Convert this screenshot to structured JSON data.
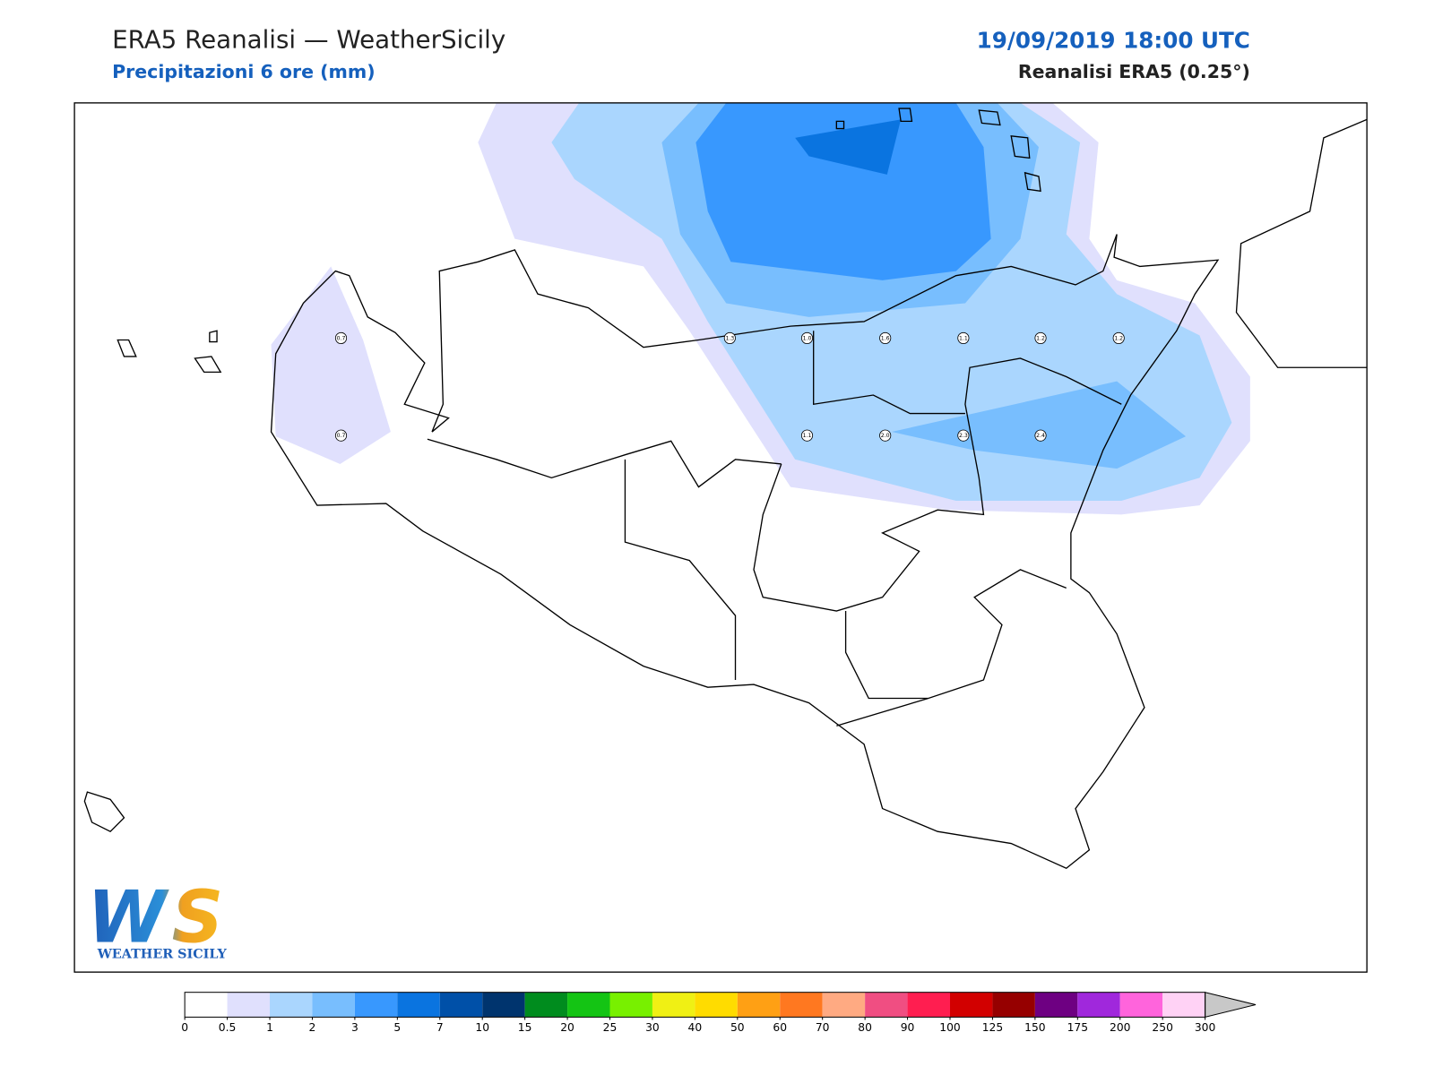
{
  "header": {
    "title": "ERA5 Reanalisi — WeatherSicily",
    "subtitle": "Precipitazioni 6 ore (mm)",
    "datetime": "19/09/2019 18:00 UTC",
    "source": "Reanalisi ERA5 (0.25°)"
  },
  "map": {
    "points": [
      0.7,
      1.3,
      {
        "value": 1,
        "label": "1.0"
      },
      1.6,
      1.1,
      1.2,
      1.2,
      0.7,
      1.1,
      {
        "value": 2,
        "label": "2.0"
      },
      2.3,
      2.4
    ]
  },
  "colorbar": {
    "levels": [
      0,
      0.5,
      1,
      2,
      3,
      5,
      7,
      10,
      15,
      20,
      25,
      30,
      40,
      50,
      60,
      70,
      80,
      90,
      100,
      125,
      150,
      175,
      200,
      250,
      300
    ],
    "colors": [
      "#ffffff",
      "#e0e0fd",
      "#aad6fe",
      "#78befe",
      "#3898fe",
      "#0a74e0",
      "#0050a8",
      "#00346e",
      "#008c1e",
      "#14c414",
      "#78f000",
      "#f0f014",
      "#ffdc00",
      "#ffa014",
      "#ff7820",
      "#ffaa82",
      "#f04e82",
      "#ff1e50",
      "#d20000",
      "#960000",
      "#6e0082",
      "#a028dc",
      "#ff64dc",
      "#ffd2f5"
    ],
    "extend_color": "#c8c8c8"
  },
  "logo": {
    "mark": "WS",
    "text": "WEATHER SICILY"
  }
}
